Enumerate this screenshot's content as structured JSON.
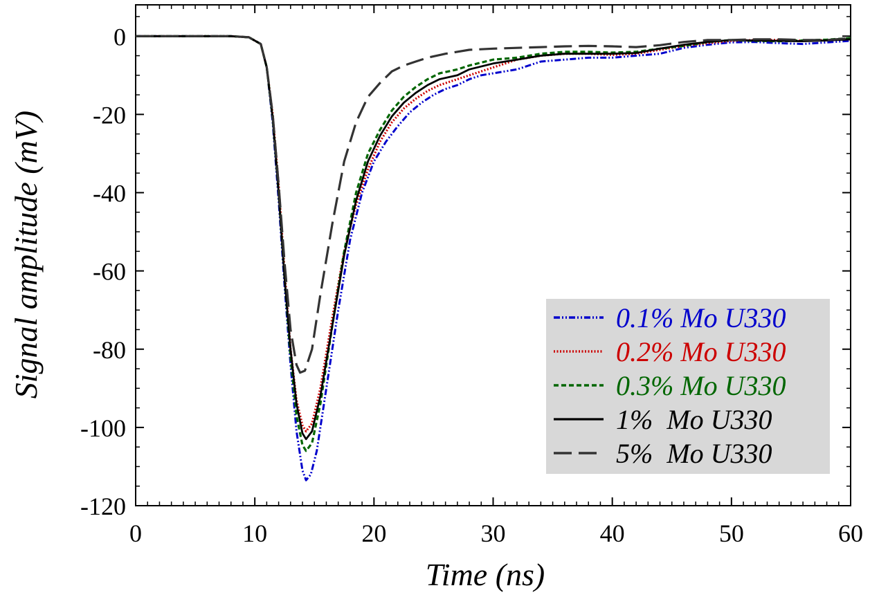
{
  "chart_data": {
    "type": "line",
    "xlabel": "Time (ns)",
    "ylabel": "Signal amplitude (mV)",
    "xlim": [
      0,
      60
    ],
    "ylim": [
      -120,
      8
    ],
    "xticks": [
      0,
      10,
      20,
      30,
      40,
      50,
      60
    ],
    "yticks": [
      0,
      -20,
      -40,
      -60,
      -80,
      -100,
      -120
    ],
    "x_minor_step": 1,
    "y_minor_step": 5,
    "grid": false,
    "legend_position": "bottom-right",
    "legend_background": "#d8d8d8",
    "series": [
      {
        "name": "0.1% Mo U330",
        "color": "#0000cc",
        "dash": "dash-dot-dot",
        "points": [
          [
            0,
            0
          ],
          [
            8,
            0
          ],
          [
            9.5,
            -0.3
          ],
          [
            10.5,
            -2
          ],
          [
            11,
            -8
          ],
          [
            11.5,
            -22
          ],
          [
            12,
            -42
          ],
          [
            12.5,
            -64
          ],
          [
            13,
            -84
          ],
          [
            13.5,
            -101
          ],
          [
            14,
            -111
          ],
          [
            14.3,
            -113.5
          ],
          [
            14.7,
            -112
          ],
          [
            15.2,
            -106
          ],
          [
            16,
            -90
          ],
          [
            17,
            -70
          ],
          [
            18,
            -52
          ],
          [
            19,
            -40
          ],
          [
            20,
            -32
          ],
          [
            21,
            -27
          ],
          [
            22,
            -23
          ],
          [
            23,
            -19.5
          ],
          [
            24,
            -17
          ],
          [
            25,
            -15
          ],
          [
            26,
            -13.5
          ],
          [
            27,
            -12.5
          ],
          [
            28,
            -11
          ],
          [
            29,
            -10
          ],
          [
            30,
            -9.5
          ],
          [
            32,
            -8.5
          ],
          [
            34,
            -6.5
          ],
          [
            36,
            -6
          ],
          [
            38,
            -5.5
          ],
          [
            40,
            -5.5
          ],
          [
            42,
            -5
          ],
          [
            44,
            -4.5
          ],
          [
            46,
            -3
          ],
          [
            48,
            -2.2
          ],
          [
            50,
            -1.6
          ],
          [
            52,
            -1.5
          ],
          [
            54,
            -1.8
          ],
          [
            56,
            -2
          ],
          [
            58,
            -1.6
          ],
          [
            60,
            -1.2
          ]
        ]
      },
      {
        "name": "0.2% Mo U330",
        "color": "#cc0000",
        "dash": "dotted",
        "points": [
          [
            0,
            0
          ],
          [
            8,
            0
          ],
          [
            9.5,
            -0.3
          ],
          [
            10.5,
            -2
          ],
          [
            11,
            -8
          ],
          [
            11.5,
            -20
          ],
          [
            12,
            -38
          ],
          [
            12.5,
            -60
          ],
          [
            13,
            -80
          ],
          [
            13.5,
            -93
          ],
          [
            14,
            -99.5
          ],
          [
            14.3,
            -101
          ],
          [
            14.8,
            -99
          ],
          [
            15.5,
            -90
          ],
          [
            16.5,
            -72
          ],
          [
            17.5,
            -55
          ],
          [
            18.5,
            -43
          ],
          [
            19.5,
            -34
          ],
          [
            20.5,
            -27
          ],
          [
            21.5,
            -22
          ],
          [
            22.5,
            -18.5
          ],
          [
            23.5,
            -16
          ],
          [
            24.5,
            -14
          ],
          [
            25.5,
            -12.5
          ],
          [
            27,
            -11
          ],
          [
            28,
            -10
          ],
          [
            30,
            -8
          ],
          [
            32,
            -6
          ],
          [
            34,
            -5
          ],
          [
            36,
            -4.5
          ],
          [
            38,
            -4.5
          ],
          [
            40,
            -4.8
          ],
          [
            42,
            -4.5
          ],
          [
            44,
            -3.5
          ],
          [
            46,
            -2.5
          ],
          [
            48,
            -1.8
          ],
          [
            50,
            -1.2
          ],
          [
            52,
            -1
          ],
          [
            54,
            -1
          ],
          [
            56,
            -1.2
          ],
          [
            58,
            -1
          ],
          [
            60,
            -0.8
          ]
        ]
      },
      {
        "name": "0.3% Mo U330",
        "color": "#006600",
        "dash": "dashed",
        "points": [
          [
            0,
            0
          ],
          [
            8,
            0
          ],
          [
            9.5,
            -0.3
          ],
          [
            10.5,
            -2
          ],
          [
            11,
            -8
          ],
          [
            11.5,
            -21
          ],
          [
            12,
            -40
          ],
          [
            12.5,
            -62
          ],
          [
            13,
            -82
          ],
          [
            13.5,
            -97
          ],
          [
            14,
            -104.5
          ],
          [
            14.3,
            -106
          ],
          [
            14.8,
            -104
          ],
          [
            15.5,
            -94
          ],
          [
            16.5,
            -74
          ],
          [
            17.5,
            -55
          ],
          [
            18.5,
            -40
          ],
          [
            19.5,
            -30
          ],
          [
            20.5,
            -24
          ],
          [
            21.5,
            -19
          ],
          [
            22.5,
            -15.5
          ],
          [
            23.5,
            -13
          ],
          [
            24.5,
            -11
          ],
          [
            25.5,
            -9.5
          ],
          [
            27,
            -8.5
          ],
          [
            28,
            -7.5
          ],
          [
            30,
            -6
          ],
          [
            32,
            -5.5
          ],
          [
            34,
            -4.5
          ],
          [
            36,
            -4
          ],
          [
            38,
            -4
          ],
          [
            40,
            -4.2
          ],
          [
            42,
            -4
          ],
          [
            44,
            -3.2
          ],
          [
            46,
            -2.5
          ],
          [
            48,
            -1.5
          ],
          [
            50,
            -1
          ],
          [
            52,
            -1.2
          ],
          [
            54,
            -1.3
          ],
          [
            56,
            -1.1
          ],
          [
            58,
            -0.9
          ],
          [
            60,
            -0.5
          ]
        ]
      },
      {
        "name": "1%  Mo U330",
        "color": "#000000",
        "dash": "solid",
        "points": [
          [
            0,
            0
          ],
          [
            8,
            0
          ],
          [
            9.5,
            -0.3
          ],
          [
            10.5,
            -2
          ],
          [
            11,
            -8
          ],
          [
            11.5,
            -21
          ],
          [
            12,
            -40
          ],
          [
            12.5,
            -62
          ],
          [
            13,
            -80
          ],
          [
            13.5,
            -94
          ],
          [
            14,
            -101.5
          ],
          [
            14.3,
            -103
          ],
          [
            14.8,
            -101
          ],
          [
            15.5,
            -92
          ],
          [
            16.5,
            -74
          ],
          [
            17.5,
            -56
          ],
          [
            18.5,
            -42
          ],
          [
            19.5,
            -32
          ],
          [
            20.5,
            -25.5
          ],
          [
            21.5,
            -20.5
          ],
          [
            22.5,
            -17
          ],
          [
            23.5,
            -14.5
          ],
          [
            24.5,
            -12.5
          ],
          [
            25.5,
            -11
          ],
          [
            27,
            -10
          ],
          [
            28,
            -8.5
          ],
          [
            30,
            -7
          ],
          [
            32,
            -6
          ],
          [
            34,
            -5
          ],
          [
            36,
            -4.5
          ],
          [
            38,
            -4.5
          ],
          [
            40,
            -4.5
          ],
          [
            42,
            -4.3
          ],
          [
            44,
            -3.2
          ],
          [
            46,
            -2.2
          ],
          [
            48,
            -1.5
          ],
          [
            50,
            -1
          ],
          [
            52,
            -1.1
          ],
          [
            54,
            -1.2
          ],
          [
            56,
            -1.3
          ],
          [
            58,
            -1.1
          ],
          [
            60,
            -0.8
          ]
        ]
      },
      {
        "name": "5%  Mo U330",
        "color": "#333333",
        "dash": "long-dash",
        "points": [
          [
            0,
            0
          ],
          [
            8,
            0
          ],
          [
            9.5,
            -0.3
          ],
          [
            10.5,
            -2
          ],
          [
            11,
            -8
          ],
          [
            11.5,
            -20
          ],
          [
            12,
            -38
          ],
          [
            12.5,
            -58
          ],
          [
            13,
            -75
          ],
          [
            13.5,
            -84
          ],
          [
            13.8,
            -86
          ],
          [
            14.2,
            -85.5
          ],
          [
            14.8,
            -80
          ],
          [
            15.5,
            -66
          ],
          [
            16.5,
            -48
          ],
          [
            17.5,
            -32
          ],
          [
            18.5,
            -22
          ],
          [
            19.5,
            -15.5
          ],
          [
            20.5,
            -12
          ],
          [
            21.5,
            -9
          ],
          [
            22.5,
            -7.5
          ],
          [
            23.5,
            -6.5
          ],
          [
            24.5,
            -5.5
          ],
          [
            26,
            -4.5
          ],
          [
            28,
            -3.5
          ],
          [
            30,
            -3.2
          ],
          [
            32,
            -3
          ],
          [
            34,
            -2.8
          ],
          [
            36,
            -2.6
          ],
          [
            38,
            -2.5
          ],
          [
            40,
            -2.6
          ],
          [
            42,
            -2.8
          ],
          [
            44,
            -2.3
          ],
          [
            46,
            -1.5
          ],
          [
            48,
            -1
          ],
          [
            50,
            -1
          ],
          [
            52,
            -0.8
          ],
          [
            54,
            -0.8
          ],
          [
            56,
            -1
          ],
          [
            58,
            -1
          ],
          [
            60,
            -0.5
          ]
        ]
      }
    ]
  }
}
